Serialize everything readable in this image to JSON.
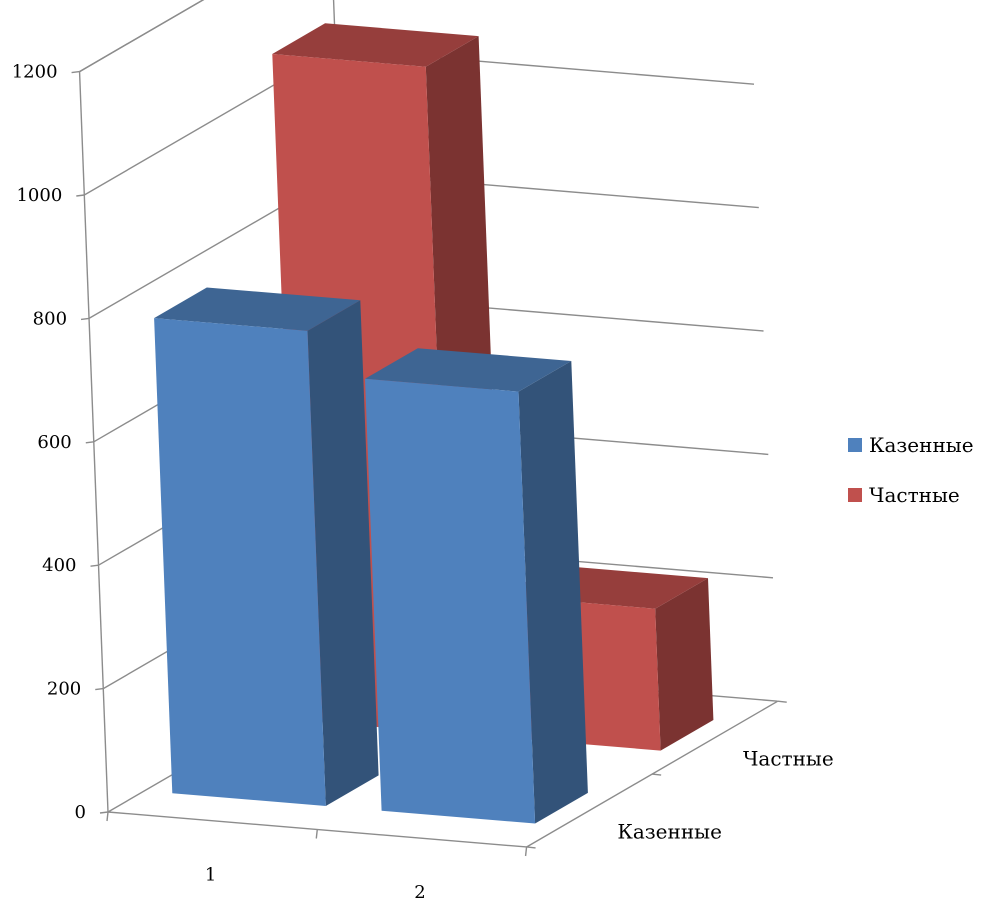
{
  "chart_data": {
    "type": "bar",
    "subtype": "3d-column",
    "categories": [
      "1",
      "2"
    ],
    "depth_categories": [
      "Казенные",
      "Частные"
    ],
    "series": [
      {
        "name": "Казенные",
        "values": [
          770,
          700
        ],
        "color": "#4F81BD"
      },
      {
        "name": "Частные",
        "values": [
          1080,
          230
        ],
        "color": "#C0504D"
      }
    ],
    "ylim": [
      0,
      1200
    ],
    "yticks": [
      "0",
      "200",
      "400",
      "600",
      "800",
      "1000",
      "1200"
    ],
    "grid": true,
    "legend_position": "right",
    "title": "",
    "xlabel": "",
    "ylabel": ""
  }
}
